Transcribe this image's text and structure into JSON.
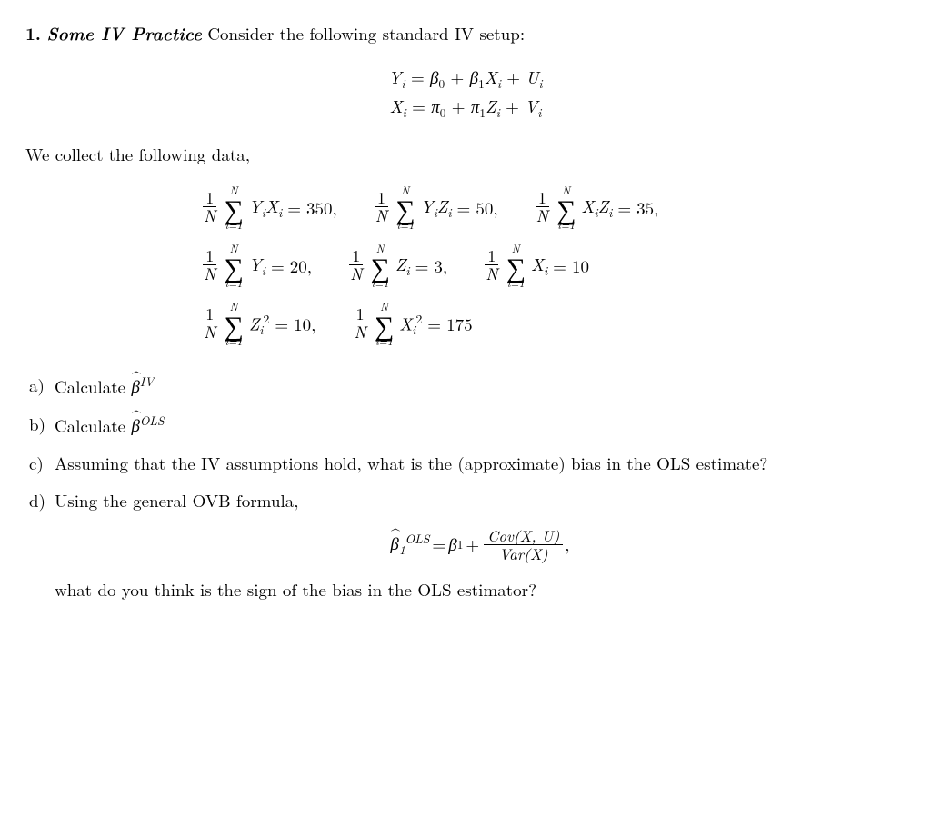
{
  "problem": {
    "number": "1.",
    "title_bold": "Some IV Practice",
    "title_rest": "Consider the following standard IV setup:"
  },
  "model": {
    "eq1": "Y_i = β₀ + β₁ X_i + U_i",
    "eq2": "X_i = π₀ + π₁ Z_i + V_i"
  },
  "data_intro": "We collect the following data,",
  "moments": {
    "row1": [
      {
        "sum_of": "Y_i X_i",
        "sum_of_disp": "Y<span class='sub'>i</span>X<span class='sub'>i</span>",
        "value": "350"
      },
      {
        "sum_of": "Y_i Z_i",
        "sum_of_disp": "Y<span class='sub'>i</span>Z<span class='sub'>i</span>",
        "value": "50"
      },
      {
        "sum_of": "X_i Z_i",
        "sum_of_disp": "X<span class='sub'>i</span>Z<span class='sub'>i</span>",
        "value": "35"
      }
    ],
    "row2": [
      {
        "sum_of": "Y_i",
        "sum_of_disp": "Y<span class='sub'>i</span>",
        "value": "20"
      },
      {
        "sum_of": "Z_i",
        "sum_of_disp": "Z<span class='sub'>i</span>",
        "value": "3"
      },
      {
        "sum_of": "X_i",
        "sum_of_disp": "X<span class='sub'>i</span>",
        "value": "10"
      }
    ],
    "row3": [
      {
        "sum_of": "Z_i^2",
        "sum_of_disp": "Z<span class='sub'>i</span><span class='sup' style='font-style:normal'>2</span>",
        "value": "10"
      },
      {
        "sum_of": "X_i^2",
        "sum_of_disp": "X<span class='sub'>i</span><span class='sup' style='font-style:normal'>2</span>",
        "value": "175"
      }
    ]
  },
  "parts": {
    "a": {
      "label": "a)",
      "text_pre": "Calculate ",
      "est": "β",
      "est_sup": "IV"
    },
    "b": {
      "label": "b)",
      "text_pre": "Calculate ",
      "est": "β",
      "est_sup": "OLS"
    },
    "c": {
      "label": "c)",
      "text": "Assuming that the IV assumptions hold, what is the (approximate) bias in the OLS estimate?"
    },
    "d": {
      "label": "d)",
      "text": "Using the general OVB formula,"
    },
    "d_after": "what do you think is the sign of the bias in the OLS estimator?"
  },
  "ovb": {
    "lhs_sym": "β",
    "lhs_sub": "1",
    "lhs_sup": "OLS",
    "rhs_first": "β",
    "rhs_first_sub": "1",
    "frac_num": "Cov(X, U)",
    "frac_den": "Var(X)"
  }
}
